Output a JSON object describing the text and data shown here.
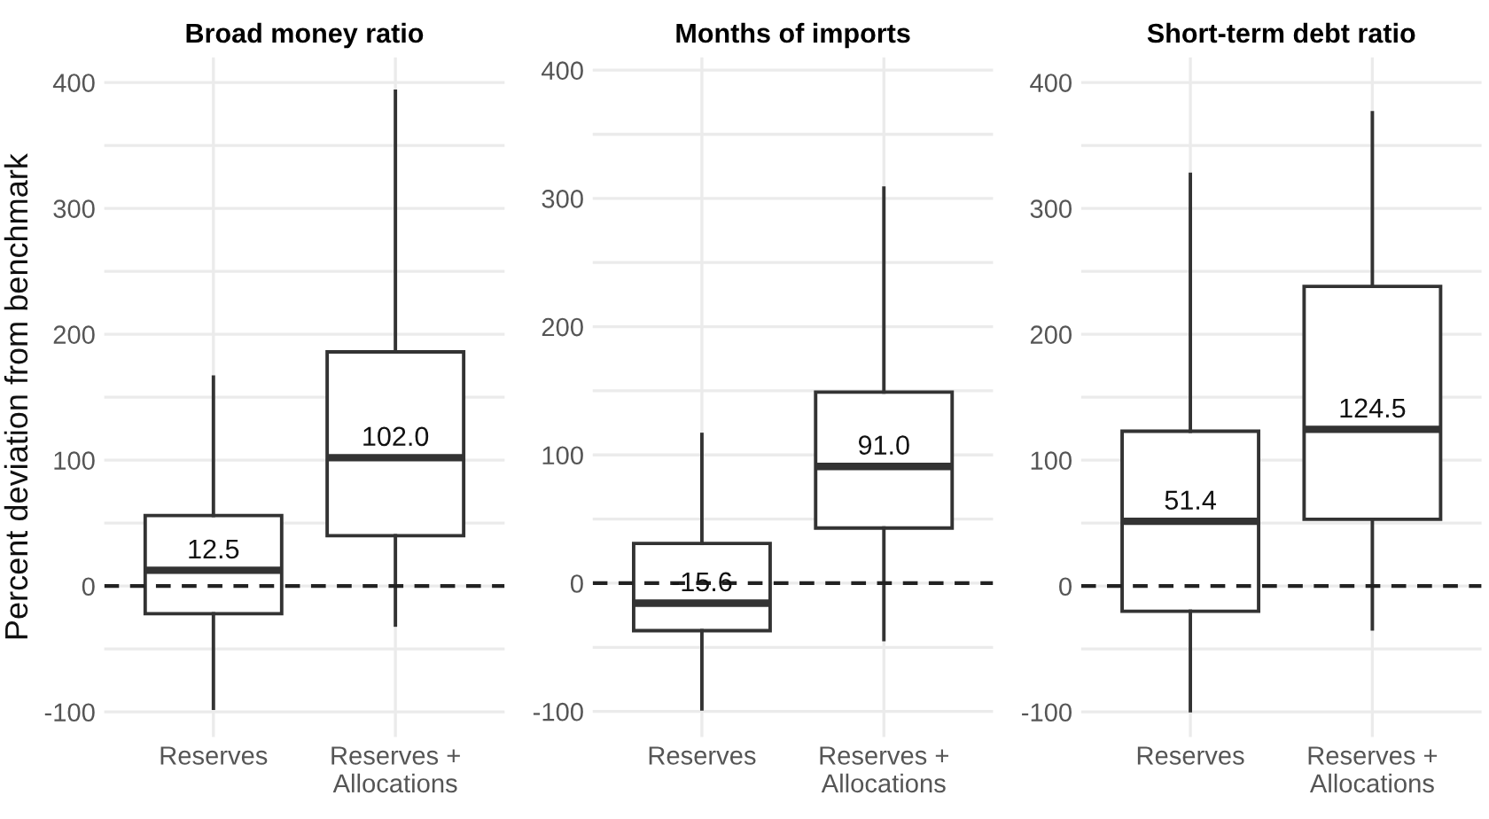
{
  "chart_data": [
    {
      "type": "box",
      "title": "Broad money ratio",
      "ylabel": "Percent deviation from benchmark",
      "categories": [
        "Reserves",
        "Reserves +\nAllocations"
      ],
      "boxes": [
        {
          "low": -97,
          "q1": -22,
          "median": 12.5,
          "q3": 56,
          "high": 166
        },
        {
          "low": -31,
          "q1": 40,
          "median": 102.0,
          "q3": 186,
          "high": 393
        }
      ],
      "value_labels": [
        "12.5",
        "102.0"
      ],
      "ylim": [
        -120,
        420
      ],
      "yticks": [
        -100,
        {
          "value": -50,
          "label": null
        },
        0,
        {
          "value": 50,
          "label": null
        },
        100,
        {
          "value": 150,
          "label": null
        },
        200,
        {
          "value": 250,
          "label": null
        },
        300,
        {
          "value": 350,
          "label": null
        },
        400
      ],
      "ref_lines": [
        {
          "axis": "y",
          "value": 0,
          "color": "#222222",
          "line_style": "dashed"
        }
      ],
      "grid": true
    },
    {
      "type": "box",
      "title": "Months of imports",
      "categories": [
        "Reserves",
        "Reserves +\nAllocations"
      ],
      "boxes": [
        {
          "low": -98,
          "q1": -37,
          "median": -15.6,
          "q3": 31,
          "high": 116
        },
        {
          "low": -44,
          "q1": 43,
          "median": 91.0,
          "q3": 149,
          "high": 308
        }
      ],
      "value_labels": [
        "-15.6",
        "91.0"
      ],
      "ylim": [
        -120,
        410
      ],
      "yticks": [
        -100,
        {
          "value": -50,
          "label": null
        },
        0,
        {
          "value": 50,
          "label": null
        },
        100,
        {
          "value": 150,
          "label": null
        },
        200,
        {
          "value": 250,
          "label": null
        },
        300,
        {
          "value": 350,
          "label": null
        },
        400
      ],
      "ref_lines": [
        {
          "axis": "y",
          "value": 0,
          "color": "#222222",
          "line_style": "dashed"
        }
      ],
      "grid": true
    },
    {
      "type": "box",
      "title": "Short-term debt ratio",
      "categories": [
        "Reserves",
        "Reserves +\nAllocations"
      ],
      "boxes": [
        {
          "low": -99,
          "q1": -20,
          "median": 51.4,
          "q3": 123,
          "high": 327
        },
        {
          "low": -34,
          "q1": 53,
          "median": 124.5,
          "q3": 238,
          "high": 376
        }
      ],
      "value_labels": [
        "51.4",
        "124.5"
      ],
      "ylim": [
        -120,
        420
      ],
      "yticks": [
        -100,
        {
          "value": -50,
          "label": null
        },
        0,
        {
          "value": 50,
          "label": null
        },
        100,
        {
          "value": 150,
          "label": null
        },
        200,
        {
          "value": 250,
          "label": null
        },
        300,
        {
          "value": 350,
          "label": null
        },
        400
      ],
      "ref_lines": [
        {
          "axis": "y",
          "value": 0,
          "color": "#222222",
          "line_style": "dashed"
        }
      ],
      "grid": true
    }
  ]
}
